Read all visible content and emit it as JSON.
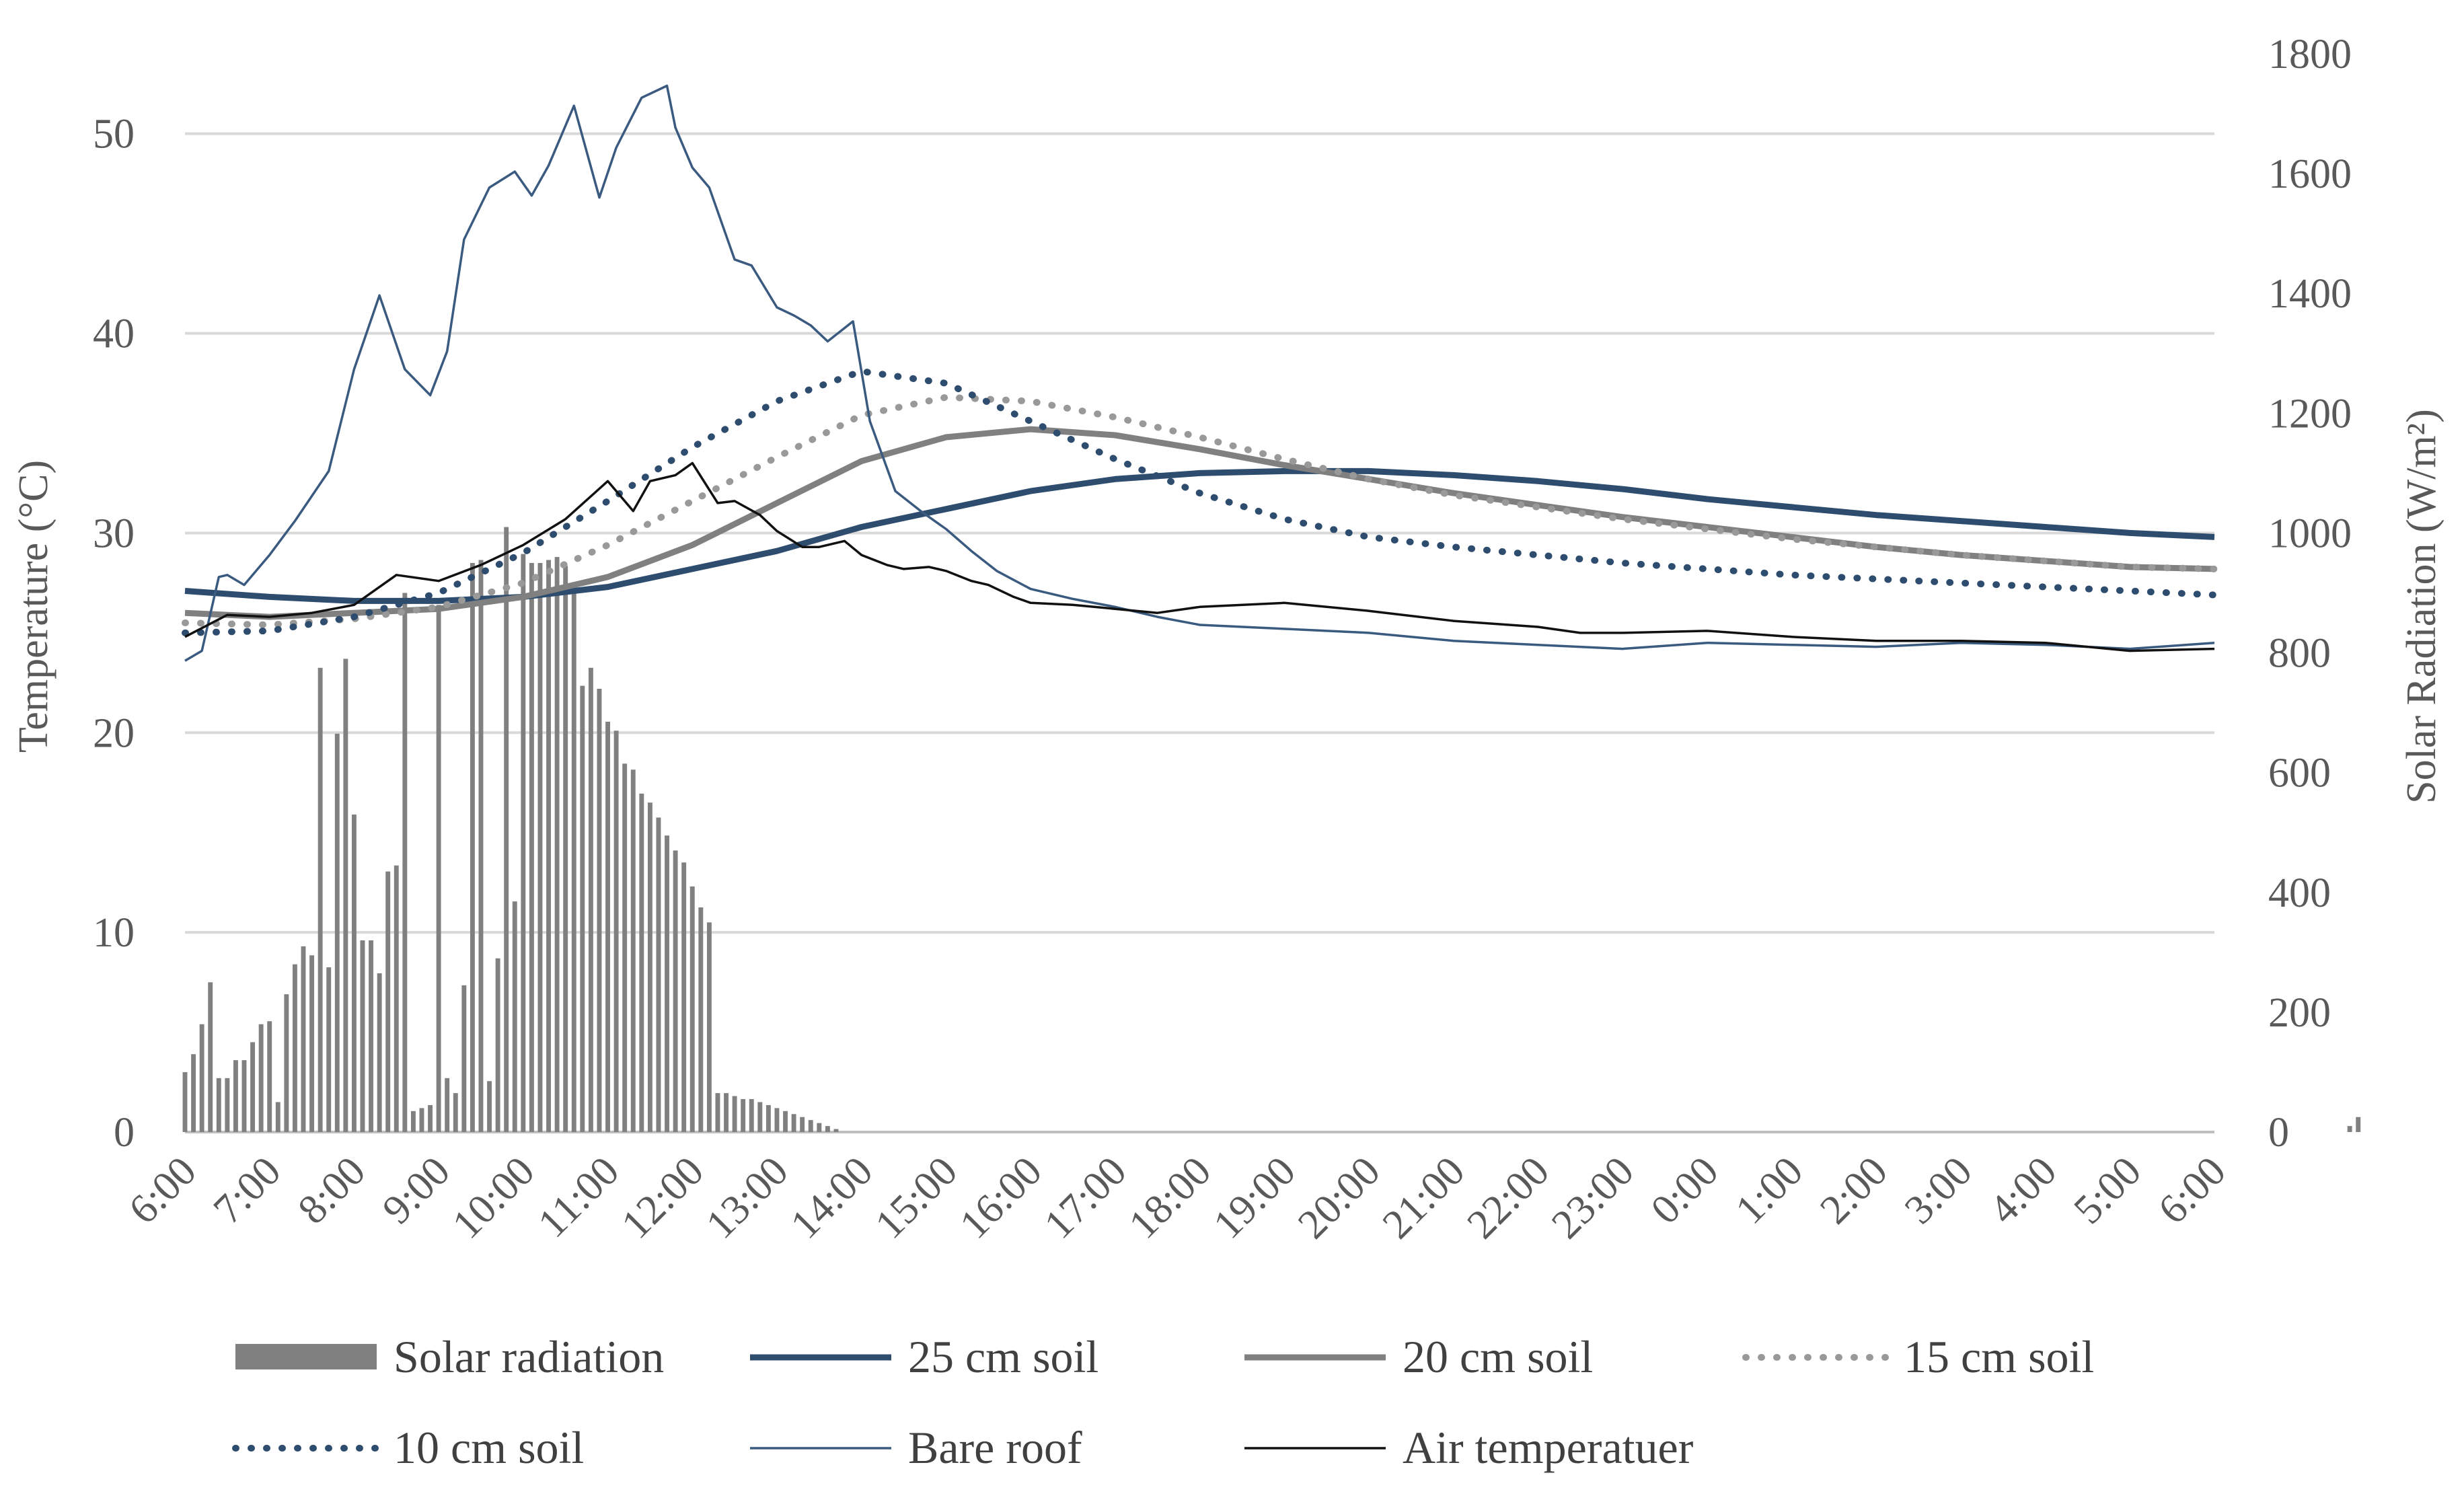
{
  "chart_data": {
    "type": "bar+line",
    "title": "",
    "x_tick_labels": [
      "6:00",
      "7:00",
      "8:00",
      "9:00",
      "10:00",
      "11:00",
      "12:00",
      "13:00",
      "14:00",
      "15:00",
      "16:00",
      "17:00",
      "18:00",
      "19:00",
      "20:00",
      "21:00",
      "22:00",
      "23:00",
      "0:00",
      "1:00",
      "2:00",
      "3:00",
      "4:00",
      "5:00",
      "6:00"
    ],
    "x_unit": "hours since 6:00",
    "xlim": [
      0,
      24
    ],
    "y_left": {
      "label": "Temperature (°C)",
      "lim": [
        0,
        54
      ],
      "ticks": [
        0,
        10,
        20,
        30,
        40,
        50
      ]
    },
    "y_right": {
      "label": "Solar Radiation (W/m²)",
      "lim": [
        0,
        1800
      ],
      "ticks": [
        0,
        200,
        400,
        600,
        800,
        1000,
        1200,
        1400,
        1600,
        1800
      ]
    },
    "bar_step_hours": 0.1,
    "series": [
      {
        "name": "Solar radiation",
        "kind": "bar",
        "axis": "right",
        "color": "#808080",
        "values": [
          100,
          130,
          180,
          250,
          90,
          90,
          120,
          120,
          150,
          180,
          185,
          50,
          230,
          280,
          310,
          295,
          775,
          275,
          665,
          790,
          530,
          320,
          320,
          265,
          435,
          445,
          900,
          35,
          40,
          45,
          880,
          90,
          65,
          245,
          950,
          955,
          85,
          290,
          1010,
          385,
          965,
          950,
          950,
          955,
          960,
          945,
          900,
          745,
          775,
          740,
          685,
          670,
          615,
          605,
          565,
          550,
          525,
          495,
          470,
          450,
          410,
          375,
          350,
          65,
          65,
          60,
          55,
          55,
          50,
          45,
          40,
          35,
          30,
          25,
          20,
          15,
          10,
          5,
          0,
          0,
          0,
          0,
          0,
          0,
          0,
          0,
          0,
          0,
          0,
          0,
          0,
          0,
          0,
          0,
          0,
          0,
          0,
          0,
          0,
          0,
          0,
          0,
          0,
          0,
          0,
          0,
          0,
          0,
          0,
          0,
          0,
          0,
          0,
          0,
          0,
          0,
          0,
          0,
          0,
          0,
          0,
          0,
          0,
          0,
          0,
          0,
          0,
          0,
          0,
          0,
          0,
          0,
          0,
          0,
          0,
          0,
          0,
          0,
          0,
          0,
          0,
          0,
          0,
          0,
          0,
          0,
          0,
          0,
          0,
          0,
          0,
          0,
          0,
          0,
          0,
          0,
          0,
          0,
          0,
          0,
          0,
          0,
          0,
          0,
          0,
          0,
          0,
          0,
          0,
          0,
          0,
          0,
          0,
          0,
          0,
          0,
          0,
          0,
          0,
          0,
          0,
          0,
          0,
          0,
          0,
          0,
          0,
          0,
          0,
          0,
          0,
          0,
          0,
          0,
          0,
          0,
          0,
          0,
          0,
          0,
          0,
          0,
          0,
          0,
          0,
          0,
          0,
          0,
          0,
          0,
          0,
          0,
          0,
          0,
          0,
          0,
          0,
          0,
          0,
          0,
          0,
          0,
          0,
          0,
          0,
          0,
          0,
          0,
          0,
          0,
          0,
          0,
          0,
          0,
          0,
          0,
          0,
          0,
          0,
          0,
          0,
          0,
          0,
          0,
          0,
          0,
          0,
          0,
          0,
          0,
          0,
          0,
          0,
          0,
          0,
          0,
          10,
          25
        ]
      },
      {
        "name": "25 cm soil",
        "kind": "line",
        "axis": "left",
        "color": "#2e4d6e",
        "style": "solid-thick",
        "x": [
          0,
          1,
          2,
          3,
          4,
          5,
          6,
          7,
          8,
          9,
          10,
          11,
          12,
          13,
          14,
          15,
          16,
          17,
          18,
          19,
          20,
          21,
          22,
          23,
          24
        ],
        "y": [
          27.1,
          26.8,
          26.6,
          26.6,
          26.8,
          27.3,
          28.2,
          29.1,
          30.3,
          31.2,
          32.1,
          32.7,
          33.0,
          33.1,
          33.1,
          32.9,
          32.6,
          32.2,
          31.7,
          31.3,
          30.9,
          30.6,
          30.3,
          30.0,
          29.8
        ]
      },
      {
        "name": "20 cm soil",
        "kind": "line",
        "axis": "left",
        "color": "#808080",
        "style": "solid-thick",
        "x": [
          0,
          1,
          2,
          3,
          4,
          5,
          6,
          7,
          8,
          9,
          10,
          11,
          12,
          13,
          14,
          15,
          16,
          17,
          18,
          19,
          20,
          21,
          22,
          23,
          24
        ],
        "y": [
          26.0,
          25.8,
          26.0,
          26.2,
          26.8,
          27.8,
          29.4,
          31.5,
          33.6,
          34.8,
          35.2,
          34.9,
          34.2,
          33.4,
          32.7,
          32.0,
          31.4,
          30.8,
          30.3,
          29.8,
          29.3,
          28.9,
          28.6,
          28.3,
          28.2
        ]
      },
      {
        "name": "15 cm soil",
        "kind": "line",
        "axis": "left",
        "color": "#999999",
        "style": "dotted",
        "x": [
          0,
          1,
          2,
          3,
          4,
          5,
          6,
          7,
          8,
          9,
          10,
          11,
          12,
          13,
          14,
          15,
          16,
          17,
          18,
          19,
          20,
          21,
          22,
          23,
          24
        ],
        "y": [
          25.5,
          25.4,
          25.7,
          26.3,
          27.5,
          29.4,
          31.6,
          33.8,
          35.9,
          36.8,
          36.6,
          35.8,
          34.8,
          33.7,
          32.7,
          31.9,
          31.3,
          30.7,
          30.2,
          29.7,
          29.3,
          28.9,
          28.6,
          28.3,
          28.2
        ]
      },
      {
        "name": "10 cm soil",
        "kind": "line",
        "axis": "left",
        "color": "#2e4d6e",
        "style": "dotted",
        "x": [
          0,
          1,
          2,
          3,
          4,
          5,
          6,
          7,
          8,
          9,
          10,
          11,
          12,
          13,
          14,
          15,
          16,
          17,
          18,
          19,
          20,
          21,
          22,
          23,
          24
        ],
        "y": [
          25.0,
          25.1,
          25.8,
          27.0,
          29.0,
          31.6,
          34.3,
          36.6,
          38.1,
          37.5,
          35.6,
          33.7,
          32.0,
          30.7,
          29.8,
          29.3,
          28.9,
          28.5,
          28.2,
          27.9,
          27.7,
          27.5,
          27.3,
          27.1,
          26.9
        ]
      },
      {
        "name": "Bare roof",
        "kind": "line",
        "axis": "left",
        "color": "#3a5a80",
        "style": "thin",
        "x": [
          0,
          0.2,
          0.4,
          0.5,
          0.7,
          1,
          1.3,
          1.7,
          2,
          2.3,
          2.6,
          2.9,
          3.1,
          3.3,
          3.6,
          3.9,
          4.1,
          4.3,
          4.6,
          4.9,
          5.1,
          5.4,
          5.7,
          5.8,
          6,
          6.2,
          6.5,
          6.7,
          7,
          7.2,
          7.4,
          7.6,
          7.9,
          8.1,
          8.4,
          8.7,
          9,
          9.3,
          9.6,
          10,
          10.5,
          11,
          11.5,
          12,
          13,
          14,
          15,
          16,
          17,
          18,
          19,
          20,
          21,
          22,
          23,
          24
        ],
        "y": [
          23.6,
          24.1,
          27.8,
          27.9,
          27.4,
          28.9,
          30.6,
          33.1,
          38.2,
          41.9,
          38.2,
          36.9,
          39.1,
          44.7,
          47.3,
          48.1,
          46.9,
          48.4,
          51.4,
          46.8,
          49.3,
          51.8,
          52.4,
          50.3,
          48.3,
          47.3,
          43.7,
          43.4,
          41.3,
          40.9,
          40.4,
          39.6,
          40.6,
          35.6,
          32.1,
          31.1,
          30.2,
          29.1,
          28.1,
          27.2,
          26.7,
          26.3,
          25.8,
          25.4,
          25.2,
          25.0,
          24.6,
          24.4,
          24.2,
          24.5,
          24.4,
          24.3,
          24.5,
          24.4,
          24.2,
          24.5
        ]
      },
      {
        "name": "Air temperatuer",
        "kind": "line",
        "axis": "left",
        "color": "#111111",
        "style": "thin",
        "x": [
          0,
          0.5,
          1,
          1.5,
          2,
          2.5,
          3,
          3.5,
          4,
          4.5,
          5,
          5.3,
          5.5,
          5.8,
          6,
          6.3,
          6.5,
          6.8,
          7,
          7.3,
          7.5,
          7.8,
          8,
          8.3,
          8.5,
          8.8,
          9,
          9.3,
          9.5,
          9.8,
          10,
          10.5,
          11,
          11.5,
          12,
          13,
          14,
          15,
          16,
          16.5,
          17,
          18,
          19,
          20,
          21,
          22,
          23,
          24
        ],
        "y": [
          24.8,
          25.9,
          25.8,
          26.0,
          26.4,
          27.9,
          27.6,
          28.4,
          29.4,
          30.7,
          32.6,
          31.1,
          32.6,
          32.9,
          33.5,
          31.5,
          31.6,
          30.9,
          30.1,
          29.3,
          29.3,
          29.6,
          28.9,
          28.4,
          28.2,
          28.3,
          28.1,
          27.6,
          27.4,
          26.8,
          26.5,
          26.4,
          26.2,
          26.0,
          26.3,
          26.5,
          26.1,
          25.6,
          25.3,
          25.0,
          25.0,
          25.1,
          24.8,
          24.6,
          24.6,
          24.5,
          24.1,
          24.2
        ]
      }
    ],
    "legend": {
      "position": "bottom",
      "entries": [
        "Solar radiation",
        "25 cm soil",
        "20 cm soil",
        "15 cm soil",
        "10 cm soil",
        "Bare roof",
        "Air temperatuer"
      ]
    }
  }
}
